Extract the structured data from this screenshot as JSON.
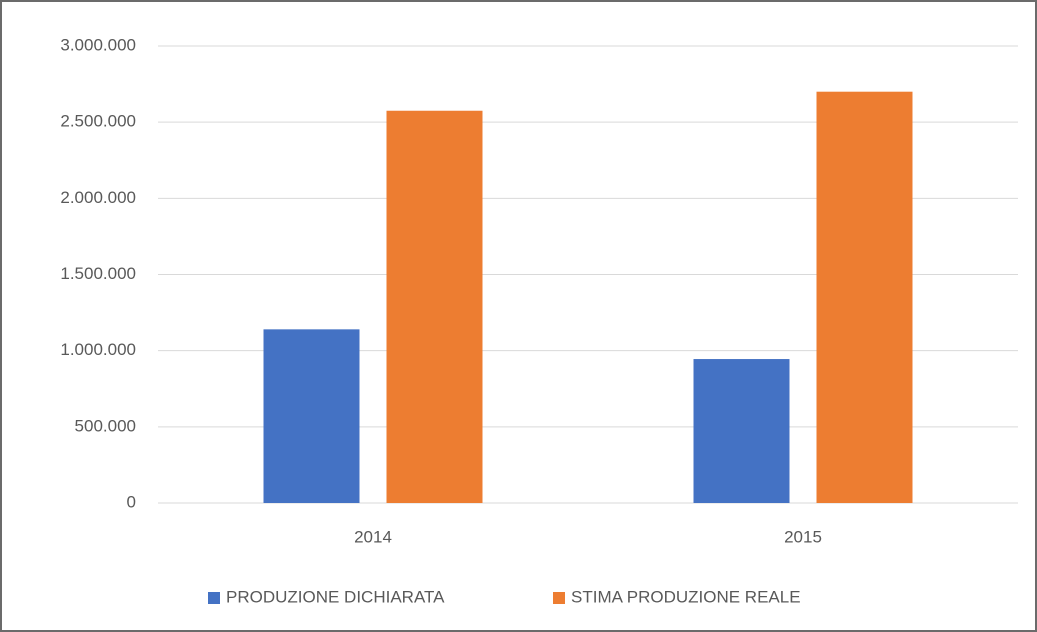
{
  "chart_data": {
    "type": "bar",
    "categories": [
      "2014",
      "2015"
    ],
    "series": [
      {
        "name": "PRODUZIONE DICHIARATA",
        "color": "#4472c4",
        "values": [
          1140000,
          945000
        ]
      },
      {
        "name": "STIMA PRODUZIONE REALE",
        "color": "#ed7d31",
        "values": [
          2575000,
          2700000
        ]
      }
    ],
    "ylim": [
      0,
      3000000
    ],
    "yticks": [
      0,
      {
        "value": 500000,
        "label": "500.000"
      },
      {
        "value": 1000000,
        "label": "1.000.000"
      },
      {
        "value": 1500000,
        "label": "1.500.000"
      },
      {
        "value": 2000000,
        "label": "2.000.000"
      },
      {
        "value": 2500000,
        "label": "2.500.000"
      },
      {
        "value": 3000000,
        "label": "3.000.000"
      }
    ],
    "grid": true,
    "legend": "bottom"
  }
}
